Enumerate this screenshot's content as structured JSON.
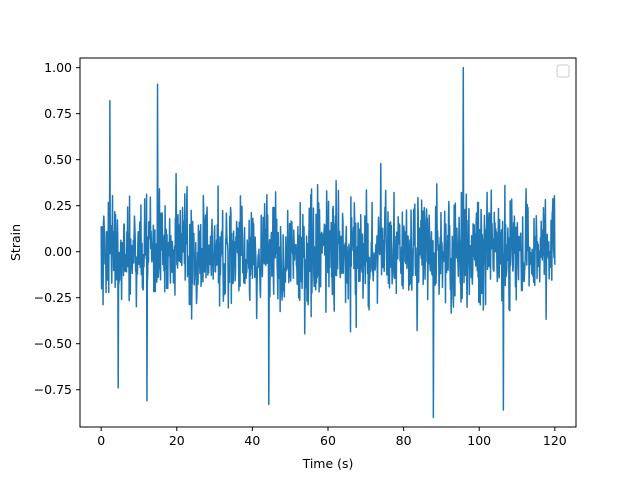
{
  "chart_data": {
    "type": "line",
    "title": "",
    "xlabel": "Time (s)",
    "ylabel": "Strain",
    "xlim": [
      -5.6,
      125.6
    ],
    "ylim": [
      -0.9525,
      1.0525
    ],
    "xticks": [
      0,
      20,
      40,
      60,
      80,
      100,
      120
    ],
    "xtick_labels": [
      "0",
      "20",
      "40",
      "60",
      "80",
      "100",
      "120"
    ],
    "yticks": [
      -0.75,
      -0.5,
      -0.25,
      0.0,
      0.25,
      0.5,
      0.75,
      1.0
    ],
    "ytick_labels": [
      "−0.75",
      "−0.50",
      "−0.25",
      "0.00",
      "0.25",
      "0.50",
      "0.75",
      "1.00"
    ],
    "grid": false,
    "legend": {
      "placement": "top-right",
      "entries": []
    },
    "series": [
      {
        "color": "#1f77b4",
        "x_range": [
          0,
          120
        ],
        "sample_count": 1200,
        "extrema": [
          {
            "x": 2.3,
            "y": 0.82
          },
          {
            "x": 4.5,
            "y": -0.74
          },
          {
            "x": 14.9,
            "y": 0.91
          },
          {
            "x": 12.1,
            "y": -0.81
          },
          {
            "x": 44.3,
            "y": -0.83
          },
          {
            "x": 87.9,
            "y": -0.9
          },
          {
            "x": 95.8,
            "y": 1.0
          },
          {
            "x": 106.4,
            "y": -0.86
          }
        ]
      }
    ]
  }
}
